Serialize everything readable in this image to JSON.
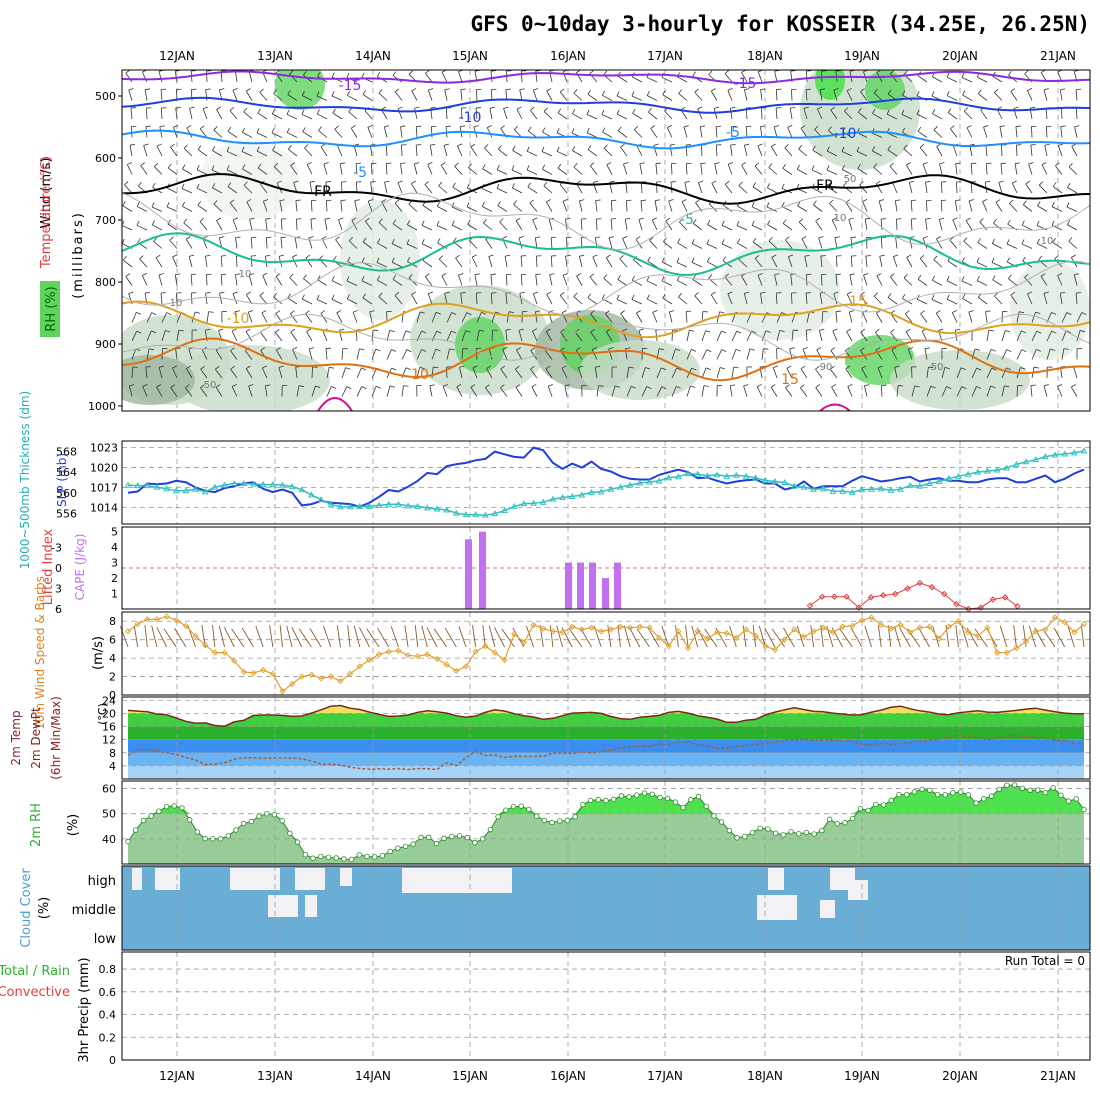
{
  "title": "GFS 0~10day 3-hourly for KOSSEIR (34.25E, 26.25N)",
  "dates": [
    "12JAN",
    "13JAN",
    "14JAN",
    "15JAN",
    "16JAN",
    "17JAN",
    "18JAN",
    "19JAN",
    "20JAN",
    "21JAN"
  ],
  "run_total": "Run Total = 0",
  "colors": {
    "purple": "#8a2be2",
    "blue": "#1f3fd8",
    "skyblue": "#1e90ff",
    "green": "#19bf8f",
    "orange_light": "#e0a020",
    "orange": "#e07010",
    "magenta": "#d0108a",
    "teal": "#30c0c0",
    "slp": "#1f3fd8",
    "cape": "#c070f0",
    "li": "#e04040",
    "wind": "#e0a030",
    "temp_fill": "#30c030",
    "dew_fill": "#3a8ef0",
    "rh_fill": "#80d080",
    "cloud": "#6aaed6"
  },
  "panels": {
    "upper": {
      "labels": [
        "Wind (m/s)",
        "Temperature (°C)",
        "RH (%)",
        "(millibars)"
      ],
      "yticks": [
        "500",
        "600",
        "700",
        "800",
        "900",
        "1000"
      ],
      "contour_labels": [
        "-15",
        "-15",
        "-10",
        "-10",
        "-5",
        "-5",
        "-5",
        "FR",
        "FR",
        "-10",
        "10",
        "15",
        "15",
        "10",
        "10",
        "10",
        "10",
        "50",
        "50",
        "90",
        "50"
      ]
    },
    "slp": {
      "labels": [
        "1000~500mb Thickness (dm)",
        "SLP (mb)"
      ],
      "thick_ticks": [
        "568",
        "564",
        "560",
        "556"
      ],
      "slp_ticks": [
        "1023",
        "1020",
        "1017",
        "1014"
      ]
    },
    "cape": {
      "labels": [
        "Lifted Index",
        "CAPE (J/kg)"
      ],
      "li_ticks": [
        "-3",
        "0",
        "3",
        "6"
      ],
      "cape_ticks": [
        "5",
        "4",
        "3",
        "2",
        "1"
      ]
    },
    "wind": {
      "labels": [
        "10m Wind Speed & Barbs",
        "(m/s)"
      ],
      "yticks": [
        "8",
        "6",
        "4",
        "2",
        "0"
      ]
    },
    "temp": {
      "labels": [
        "2m Temp",
        "2m DewPt",
        "(6hr Min/Max)",
        "(°C)"
      ],
      "yticks": [
        "24",
        "20",
        "16",
        "12",
        "8",
        "4"
      ]
    },
    "rh": {
      "labels": [
        "2m RH",
        "(%)"
      ],
      "yticks": [
        "60",
        "50",
        "40"
      ]
    },
    "cloud": {
      "labels": [
        "Cloud Cover",
        "(%)"
      ],
      "levels": [
        "high",
        "middle",
        "low"
      ]
    },
    "precip": {
      "labels": [
        "Total / Rain",
        "Convective",
        "3hr Precip (mm)"
      ],
      "yticks": [
        "0.8",
        "0.6",
        "0.4",
        "0.2",
        "0"
      ]
    }
  },
  "chart_data": [
    {
      "type": "line",
      "name": "slp",
      "ylabel": "SLP (mb)",
      "ylim": [
        1011.5,
        1024
      ],
      "values": [
        1016.2,
        1016.4,
        1017.6,
        1017.5,
        1017.6,
        1018.0,
        1017.8,
        1017.0,
        1016.5,
        1016.3,
        1016.9,
        1017.2,
        1017.6,
        1017.8,
        1016.8,
        1016.3,
        1016.7,
        1016.2,
        1014.3,
        1014.5,
        1015.0,
        1014.7,
        1014.6,
        1014.5,
        1014.1,
        1014.7,
        1015.6,
        1016.6,
        1016.4,
        1017.1,
        1018.0,
        1019.2,
        1019.0,
        1020.2,
        1020.5,
        1020.7,
        1021.1,
        1021.3,
        1022.4,
        1022.0,
        1021.6,
        1021.5,
        1023.0,
        1022.6,
        1020.7,
        1019.8,
        1020.6,
        1020.0,
        1020.9,
        1019.8,
        1019.4,
        1018.7,
        1018.3,
        1018.2,
        1018.2,
        1018.9,
        1019.3,
        1019.7,
        1019.3,
        1018.4,
        1018.5,
        1018.0,
        1017.6,
        1017.9,
        1018.1,
        1018.2,
        1017.6,
        1017.6,
        1016.7,
        1017.0,
        1017.9,
        1016.8,
        1017.2,
        1017.2,
        1017.2,
        1018.0,
        1018.7,
        1018.3,
        1017.9,
        1018.1,
        1018.4,
        1018.6,
        1017.9,
        1018.2,
        1018.4,
        1018.0,
        1018.0,
        1017.8,
        1017.8,
        1018.2,
        1018.4,
        1018.4,
        1017.8,
        1017.8,
        1018.3,
        1018.8,
        1017.8,
        1018.3,
        1019.1,
        1019.7
      ]
    },
    {
      "type": "line",
      "name": "thickness",
      "ylabel": "1000~500mb Thickness (dm)",
      "ylim": [
        554,
        570
      ],
      "values": [
        561.5,
        561.4,
        561.4,
        561.1,
        560.8,
        560.4,
        560.4,
        560.7,
        560.2,
        561.1,
        561.5,
        561.8,
        561.8,
        561.7,
        561.6,
        561.6,
        561.5,
        561.2,
        560.6,
        559.6,
        558.7,
        557.8,
        557.3,
        557.3,
        557.4,
        557.4,
        557.6,
        557.8,
        557.8,
        557.5,
        557.4,
        557.1,
        556.9,
        556.7,
        556.1,
        555.8,
        555.8,
        555.7,
        556.0,
        556.6,
        557.4,
        557.9,
        558.0,
        558.2,
        558.8,
        559.1,
        559.3,
        559.6,
        560.1,
        560.2,
        560.7,
        561.1,
        561.5,
        561.9,
        562.1,
        562.3,
        562.9,
        563.1,
        563.7,
        563.6,
        563.3,
        563.5,
        563.2,
        563.4,
        563.2,
        562.9,
        562.4,
        562.2,
        562.0,
        561.3,
        561.1,
        560.7,
        560.8,
        560.3,
        560.3,
        560.1,
        560.6,
        560.7,
        560.8,
        560.5,
        560.7,
        561.4,
        561.3,
        561.8,
        562.2,
        562.8,
        563.2,
        563.6,
        564.0,
        564.2,
        564.4,
        564.8,
        565.5,
        566.0,
        566.4,
        567.0,
        567.3,
        567.5,
        567.7,
        568.1
      ]
    },
    {
      "type": "bar",
      "name": "cape",
      "ylabel": "CAPE (J/kg)",
      "x": [
        "15JAN 00Z",
        "15JAN 03Z",
        "16JAN 00Z",
        "16JAN 03Z",
        "16JAN 06Z",
        "16JAN 09Z",
        "16JAN 12Z"
      ],
      "values": [
        4.5,
        5.0,
        3.0,
        3.0,
        3.0,
        2.0,
        3.0
      ]
    },
    {
      "type": "line",
      "name": "lifted_index",
      "ylabel": "Lifted Index",
      "ylim": [
        -6,
        6
      ],
      "x": [
        "18JAN 12Z",
        "18JAN 15Z",
        "18JAN 18Z",
        "18JAN 21Z",
        "19JAN 00Z",
        "19JAN 03Z",
        "19JAN 06Z",
        "19JAN 09Z",
        "19JAN 12Z",
        "19JAN 15Z",
        "19JAN 18Z",
        "19JAN 21Z",
        "20JAN 00Z",
        "20JAN 03Z",
        "20JAN 06Z",
        "20JAN 09Z",
        "20JAN 12Z",
        "20JAN 15Z"
      ],
      "values": [
        5.5,
        4.2,
        4.2,
        4.2,
        5.8,
        4.3,
        4.0,
        3.8,
        3.0,
        2.2,
        2.8,
        3.8,
        5.3,
        6.0,
        5.8,
        4.6,
        4.3,
        5.6
      ]
    },
    {
      "type": "line",
      "name": "wind_speed",
      "ylabel": "(m/s)",
      "ylim": [
        0,
        9
      ],
      "values": [
        6.9,
        7.7,
        8.2,
        8.2,
        8.5,
        8.1,
        7.5,
        6.4,
        5.4,
        4.6,
        4.6,
        3.7,
        2.5,
        2.4,
        2.7,
        2.3,
        0.4,
        1.2,
        2.0,
        2.2,
        1.8,
        2.0,
        1.5,
        2.3,
        3.1,
        3.8,
        4.4,
        4.7,
        4.8,
        4.3,
        4.2,
        4.4,
        3.9,
        3.3,
        2.6,
        3.1,
        4.7,
        5.3,
        4.6,
        3.8,
        6.6,
        5.7,
        7.6,
        7.2,
        6.9,
        6.8,
        7.4,
        7.1,
        7.3,
        6.9,
        7.1,
        7.4,
        7.3,
        7.4,
        7.3,
        6.2,
        5.3,
        6.9,
        5.1,
        6.9,
        6.1,
        6.8,
        6.7,
        6.2,
        7.1,
        6.4,
        5.3,
        4.9,
        6.0,
        7.1,
        6.3,
        6.9,
        7.3,
        6.8,
        7.4,
        7.5,
        8.1,
        8.4,
        7.6,
        7.2,
        7.6,
        6.8,
        7.3,
        7.4,
        6.1,
        7.4,
        8.0,
        6.8,
        6.4,
        7.3,
        4.6,
        4.6,
        5.1,
        5.8,
        6.9,
        7.1,
        8.4,
        7.9,
        6.8,
        7.7
      ]
    },
    {
      "type": "area",
      "name": "temp_2m",
      "ylabel": "(°C)",
      "ylim": [
        0,
        25
      ],
      "values": [
        20.9,
        20.7,
        20.5,
        19.8,
        19.6,
        18.6,
        17.6,
        17.0,
        17.1,
        16.3,
        16.1,
        17.4,
        17.9,
        19.4,
        19.5,
        19.5,
        19.4,
        19.1,
        19.2,
        20.1,
        21.1,
        22.2,
        22.4,
        21.6,
        21.2,
        20.4,
        19.7,
        19.1,
        19.2,
        19.5,
        20.3,
        20.8,
        20.5,
        20.1,
        19.3,
        18.8,
        19.2,
        20.3,
        21.1,
        20.7,
        19.9,
        19.3,
        18.9,
        18.2,
        18.5,
        19.3,
        20.1,
        20.2,
        20.3,
        20.0,
        19.1,
        18.4,
        18.2,
        18.8,
        19.1,
        19.4,
        20.3,
        20.6,
        20.1,
        19.3,
        18.8,
        18.3,
        17.3,
        17.3,
        17.9,
        18.2,
        19.5,
        20.4,
        21.1,
        21.7,
        21.2,
        20.6,
        20.5,
        20.1,
        19.8,
        19.5,
        19.6,
        20.4,
        21.0,
        21.9,
        22.2,
        21.4,
        20.8,
        20.4,
        19.8,
        19.6,
        20.2,
        20.5,
        20.8,
        20.4,
        20.3,
        20.6,
        20.9,
        21.3,
        21.6,
        21.0,
        20.5,
        20.1,
        19.9,
        19.9
      ]
    },
    {
      "type": "area",
      "name": "dewpt_2m",
      "ylabel": "(°C)",
      "ylim": [
        0,
        25
      ],
      "values": [
        7.3,
        8.9,
        9.0,
        8.6,
        8.0,
        7.5,
        6.6,
        5.8,
        4.4,
        4.5,
        5.0,
        6.0,
        6.5,
        6.5,
        6.3,
        6.4,
        6.4,
        6.4,
        6.2,
        5.5,
        4.5,
        4.5,
        4.2,
        3.6,
        3.2,
        3.0,
        3.1,
        3.0,
        3.2,
        2.9,
        3.2,
        3.1,
        2.9,
        4.9,
        4.1,
        6.5,
        8.4,
        7.2,
        7.3,
        6.6,
        6.9,
        6.9,
        6.9,
        6.9,
        7.9,
        7.9,
        7.8,
        8.3,
        7.9,
        8.4,
        8.8,
        9.4,
        9.7,
        10.0,
        10.0,
        10.7,
        10.3,
        11.2,
        11.3,
        10.3,
        10.1,
        9.4,
        9.4,
        9.9,
        10.2,
        10.5,
        10.9,
        11.2,
        11.8,
        12.0,
        12.1,
        11.7,
        11.9,
        11.8,
        11.6,
        11.6,
        10.6,
        10.4,
        11.0,
        10.5,
        10.8,
        11.1,
        11.6,
        11.8,
        12.1,
        12.8,
        13.4,
        12.7,
        12.7,
        12.0,
        12.5,
        13.1,
        13.3,
        13.0,
        12.7,
        12.6,
        11.9,
        11.6,
        10.9,
        10.6
      ]
    },
    {
      "type": "area",
      "name": "rh_2m",
      "ylabel": "(%)",
      "ylim": [
        30,
        63
      ],
      "values": [
        38.9,
        43.5,
        47.3,
        49.1,
        51.0,
        52.8,
        53.1,
        52.3,
        47.6,
        42.7,
        40.1,
        40.0,
        40.0,
        41.2,
        43.5,
        46.1,
        46.9,
        49.0,
        50.0,
        49.6,
        47.2,
        42.2,
        38.7,
        33.7,
        32.3,
        33.0,
        32.7,
        32.4,
        32.0,
        31.8,
        33.6,
        33.0,
        32.8,
        33.3,
        35.0,
        36.3,
        37.0,
        37.9,
        40.6,
        40.6,
        38.1,
        40.2,
        40.9,
        41.2,
        40.5,
        38.5,
        40.0,
        43.7,
        48.8,
        51.4,
        52.8,
        53.0,
        51.7,
        49.0,
        47.3,
        46.5,
        47.1,
        47.3,
        48.8,
        53.6,
        55.3,
        55.6,
        55.2,
        55.7,
        57.1,
        56.7,
        57.4,
        58.2,
        57.7,
        56.4,
        56.1,
        54.6,
        52.4,
        55.6,
        56.8,
        52.9,
        49.1,
        46.7,
        43.3,
        40.4,
        40.9,
        42.5,
        44.2,
        43.9,
        42.2,
        41.6,
        42.8,
        42.0,
        42.5,
        41.9,
        43.3,
        47.8,
        46.0,
        46.4,
        48.1,
        52.0,
        51.3,
        53.7,
        53.5,
        55.3,
        57.6,
        57.6,
        58.7,
        59.7,
        59.3,
        57.6,
        57.5,
        58.3,
        58.6,
        57.5,
        54.2,
        55.9,
        57.0,
        59.7,
        61.3,
        61.4,
        60.1,
        59.3,
        59.4,
        58.4,
        60.3,
        57.3,
        55.0,
        55.9,
        51.6
      ]
    },
    {
      "type": "line",
      "name": "precip_3hr",
      "ylabel": "3hr Precip (mm)",
      "ylim": [
        0,
        1
      ],
      "values": [
        0,
        0,
        0,
        0,
        0,
        0,
        0,
        0,
        0,
        0
      ]
    }
  ]
}
